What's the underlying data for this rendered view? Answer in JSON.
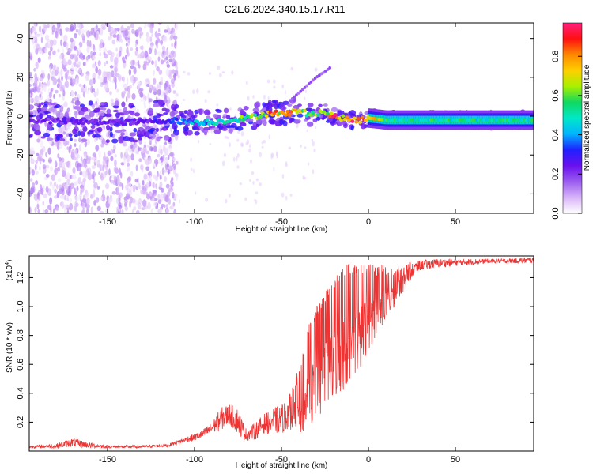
{
  "title": "C2E6.2024.340.15.17.R11",
  "chart_data": [
    {
      "type": "heatmap",
      "name": "spectrogram",
      "xlabel": "Height of straight line (km)",
      "ylabel": "Frequency (Hz)",
      "xlim": [
        -195,
        95
      ],
      "ylim": [
        -50,
        48
      ],
      "xticks": [
        -150,
        -100,
        -50,
        0,
        50
      ],
      "xtick_labels": [
        "-150",
        "-100",
        "-50",
        "0",
        "50"
      ],
      "yticks": [
        -40,
        -20,
        0,
        20,
        40
      ],
      "ytick_labels": [
        "-40",
        "-20",
        "0",
        "20",
        "40"
      ],
      "colorbar": {
        "label": "Normalized spectral amplitude",
        "range": [
          0,
          0.97
        ],
        "ticks": [
          0.0,
          0.2,
          0.4,
          0.6,
          0.8
        ],
        "tick_labels": [
          "0.0",
          "0.2",
          "0.4",
          "0.6",
          "0.8"
        ],
        "colormap": [
          "#ffffff",
          "#d8b4f8",
          "#9a5cf0",
          "#6a10ee",
          "#2020ff",
          "#00b4ff",
          "#00e8c8",
          "#10d860",
          "#a8f000",
          "#ffd000",
          "#ff8800",
          "#ff1010",
          "#ff2080"
        ]
      },
      "ridge": {
        "x": [
          -195,
          -170,
          -150,
          -130,
          -115,
          -100,
          -90,
          -80,
          -70,
          -60,
          -55,
          -50,
          -45,
          -40,
          -35,
          -30,
          -25,
          -20,
          -15,
          -10,
          -5,
          0,
          10,
          20,
          40,
          60,
          80,
          95
        ],
        "freq": [
          -2,
          -3,
          -3,
          -3,
          -2,
          -3,
          -3,
          -2,
          -1,
          1,
          2,
          1,
          2,
          3,
          1,
          2,
          2,
          0,
          -1,
          -2,
          -2,
          -1,
          -2,
          -2,
          -2,
          -2,
          -2,
          -2
        ],
        "amplitude": [
          0.22,
          0.25,
          0.25,
          0.25,
          0.32,
          0.45,
          0.5,
          0.55,
          0.62,
          0.7,
          0.88,
          0.75,
          0.82,
          0.7,
          0.65,
          0.7,
          0.6,
          0.92,
          0.8,
          0.88,
          0.95,
          0.85,
          0.6,
          0.55,
          0.55,
          0.55,
          0.55,
          0.55
        ]
      },
      "harmonic": {
        "x": [
          -45,
          -40,
          -35,
          -30,
          -25,
          -22
        ],
        "freq": [
          8,
          12,
          16,
          20,
          23,
          25
        ]
      }
    },
    {
      "type": "line",
      "name": "snr",
      "xlabel": "Height of straight line (km)",
      "ylabel": "SNR (10 * v/v)",
      "scale_label": "(x10",
      "scale_exponent": "4",
      "xlim": [
        -195,
        95
      ],
      "ylim": [
        0,
        1.35
      ],
      "xticks": [
        -150,
        -100,
        -50,
        0,
        50
      ],
      "xtick_labels": [
        "-150",
        "-100",
        "-50",
        "0",
        "50"
      ],
      "yticks": [
        0.2,
        0.4,
        0.6,
        0.8,
        1.0,
        1.2
      ],
      "ytick_labels": [
        "0.2",
        "0.4",
        "0.6",
        "0.8",
        "1.0",
        "1.2"
      ],
      "color": "#ee3333",
      "envelope": {
        "x": [
          -195,
          -180,
          -170,
          -160,
          -150,
          -130,
          -115,
          -105,
          -100,
          -95,
          -90,
          -85,
          -80,
          -75,
          -72,
          -70,
          -65,
          -60,
          -55,
          -50,
          -45,
          -42,
          -40,
          -35,
          -30,
          -25,
          -20,
          -15,
          -10,
          -5,
          0,
          5,
          10,
          15,
          20,
          25,
          30,
          40,
          50,
          60,
          70,
          80,
          90,
          95
        ],
        "low": [
          0.02,
          0.02,
          0.03,
          0.02,
          0.02,
          0.02,
          0.03,
          0.06,
          0.07,
          0.09,
          0.12,
          0.14,
          0.18,
          0.12,
          0.08,
          0.07,
          0.08,
          0.12,
          0.12,
          0.12,
          0.15,
          0.12,
          0.1,
          0.14,
          0.2,
          0.25,
          0.35,
          0.4,
          0.5,
          0.55,
          0.7,
          0.8,
          0.9,
          1.0,
          1.1,
          1.2,
          1.25,
          1.27,
          1.28,
          1.29,
          1.3,
          1.3,
          1.3,
          1.3
        ],
        "high": [
          0.04,
          0.05,
          0.09,
          0.06,
          0.04,
          0.04,
          0.05,
          0.1,
          0.12,
          0.15,
          0.2,
          0.3,
          0.33,
          0.3,
          0.2,
          0.15,
          0.2,
          0.26,
          0.3,
          0.32,
          0.4,
          0.5,
          0.6,
          0.85,
          1.0,
          1.1,
          1.2,
          1.28,
          1.3,
          1.3,
          1.31,
          1.28,
          1.3,
          1.3,
          1.3,
          1.31,
          1.32,
          1.33,
          1.33,
          1.33,
          1.33,
          1.33,
          1.34,
          1.34
        ]
      }
    }
  ]
}
